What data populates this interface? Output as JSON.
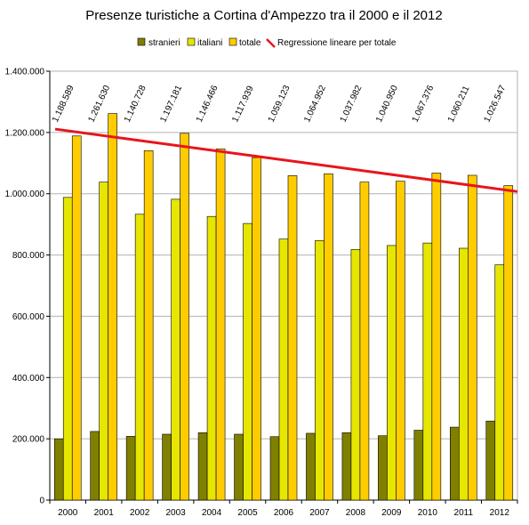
{
  "chart_data": {
    "type": "bar",
    "title": "Presenze turistiche a Cortina d'Ampezzo tra il 2000 e il 2012",
    "categories": [
      "2000",
      "2001",
      "2002",
      "2003",
      "2004",
      "2005",
      "2006",
      "2007",
      "2008",
      "2009",
      "2010",
      "2011",
      "2012"
    ],
    "series": [
      {
        "name": "stranieri",
        "color": "#808000",
        "values": [
          200000,
          224000,
          208000,
          215000,
          220000,
          215000,
          207000,
          218000,
          220000,
          210000,
          228000,
          238000,
          258000
        ]
      },
      {
        "name": "italiani",
        "color": "#e6e600",
        "values": [
          988000,
          1038000,
          933000,
          982000,
          926000,
          903000,
          852000,
          847000,
          818000,
          831000,
          839000,
          822000,
          768000
        ]
      },
      {
        "name": "totale",
        "color": "#ffcc00",
        "values": [
          1188589,
          1261630,
          1140728,
          1197181,
          1146466,
          1117939,
          1059123,
          1064952,
          1037982,
          1040950,
          1067376,
          1060211,
          1026547
        ],
        "labels": [
          "1.188.589",
          "1.261.630",
          "1.140.728",
          "1.197.181",
          "1.146.466",
          "1.117.939",
          "1.059.123",
          "1.064.952",
          "1.037.982",
          "1.040.950",
          "1.067.376",
          "1.060.211",
          "1.026.547"
        ]
      }
    ],
    "trendline": {
      "name": "Regressione lineare per totale",
      "color": "#e8151b",
      "start": 1211000,
      "end": 1007000
    },
    "ylim": [
      0,
      1400000
    ],
    "yticks": [
      0,
      200000,
      400000,
      600000,
      800000,
      1000000,
      1200000,
      1400000
    ],
    "ytick_labels": [
      "0",
      "200.000",
      "400.000",
      "600.000",
      "800.000",
      "1.000.000",
      "1.200.000",
      "1.400.000"
    ],
    "grid": true,
    "legend_position": "top"
  }
}
